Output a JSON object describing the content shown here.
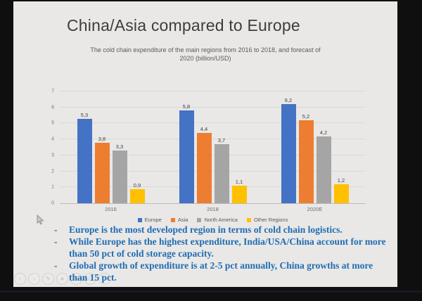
{
  "slide": {
    "title": "China/Asia compared to Europe",
    "subtitle_line1": "The cold chain expenditure of the main regions from 2016 to 2018, and forecast of",
    "subtitle_line2": "2020 (billion/USD)",
    "bullet_marker": "-",
    "bullets": [
      "Europe is the most developed region in terms of cold chain logistics.",
      "While Europe has the highest expenditure, India/USA/China account for more than 50 pct of cold storage capacity.",
      "Global growth of expenditure is at 2-5 pct annually, China growths at more than 15 pct."
    ]
  },
  "chart_data": {
    "type": "bar",
    "title": "The cold chain expenditure of the main regions from 2016 to 2018, and forecast of 2020 (billion/USD)",
    "categories": [
      "2016",
      "2018",
      "2020E"
    ],
    "series": [
      {
        "name": "Europe",
        "color": "#4472C4",
        "values": [
          5.3,
          5.8,
          6.2
        ],
        "labels": [
          "5,3",
          "5,8",
          "6,2"
        ]
      },
      {
        "name": "Asia",
        "color": "#ED7D31",
        "values": [
          3.8,
          4.4,
          5.2
        ],
        "labels": [
          "3,8",
          "4,4",
          "5,2"
        ]
      },
      {
        "name": "North America",
        "color": "#A5A5A5",
        "values": [
          3.3,
          3.7,
          4.2
        ],
        "labels": [
          "3,3",
          "3,7",
          "4,2"
        ]
      },
      {
        "name": "Other Regions",
        "color": "#FFC000",
        "values": [
          0.9,
          1.1,
          1.2
        ],
        "labels": [
          "0,9",
          "1,1",
          "1,2"
        ]
      }
    ],
    "xlabel": "",
    "ylabel": "",
    "ylim": [
      0,
      7
    ],
    "yticks": [
      0,
      1,
      2,
      3,
      4,
      5,
      6,
      7
    ],
    "grid": true,
    "legend_position": "bottom",
    "decimal_separator": ","
  },
  "presenter_controls": {
    "items": [
      {
        "name": "previous-slide",
        "glyph": "‹"
      },
      {
        "name": "next-slide",
        "glyph": "›"
      },
      {
        "name": "pen-tool",
        "glyph": "✎"
      },
      {
        "name": "laser-pointer",
        "glyph": "●"
      },
      {
        "name": "all-slides",
        "glyph": "⊞"
      },
      {
        "name": "zoom-slide",
        "glyph": "⊙"
      },
      {
        "name": "more-options",
        "glyph": "⋯"
      }
    ]
  },
  "colors": {
    "letterbox": "#0F0F0F",
    "slide_background": "#E9E8E6",
    "title_text": "#3D3D3D",
    "subtitle_text": "#595959",
    "bullet_text": "#1F6DB4",
    "gridline": "#D9D9D9",
    "axis_text": "#757575"
  }
}
